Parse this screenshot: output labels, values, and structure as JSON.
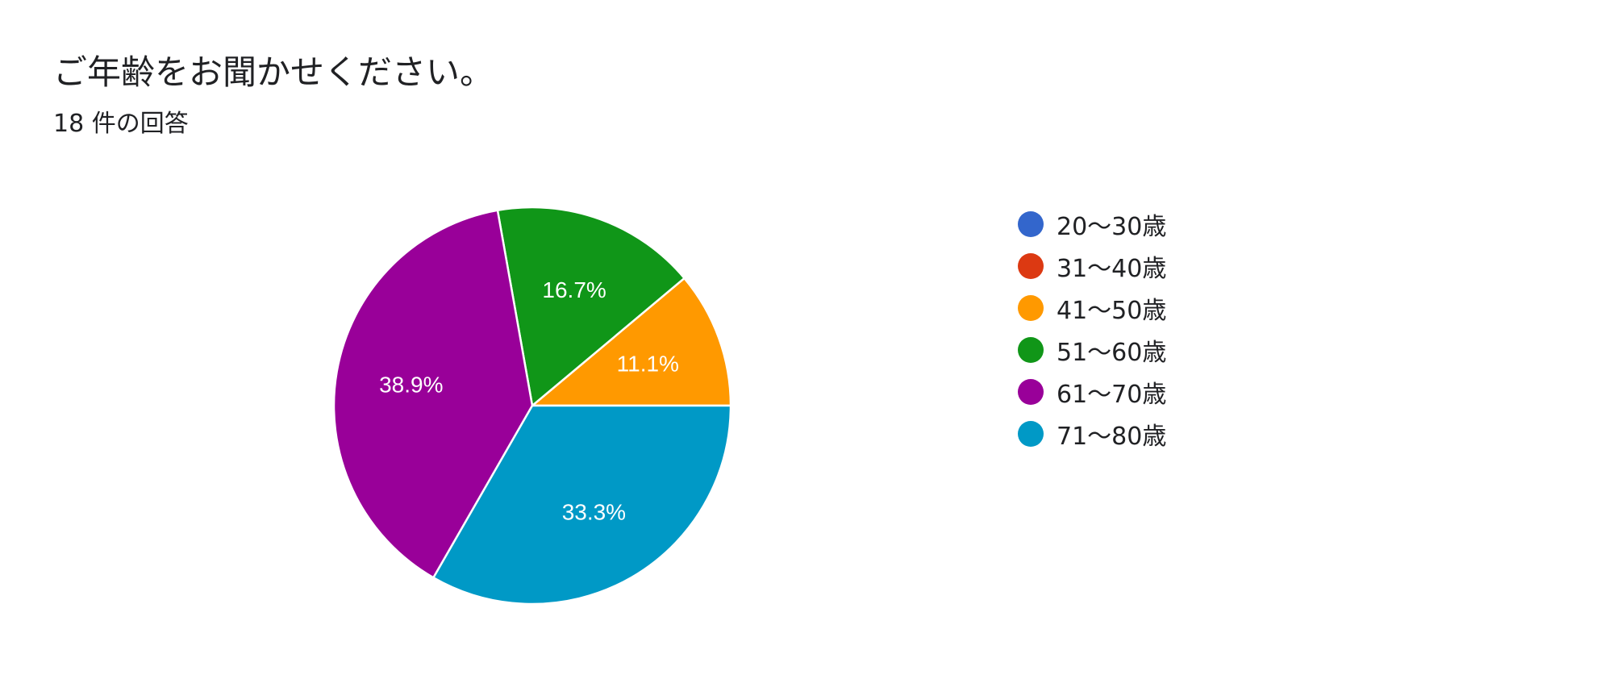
{
  "header": {
    "question": "ご年齢をお聞かせください。",
    "response_count": "18 件の回答"
  },
  "chart_data": {
    "type": "pie",
    "start": "3 o'clock, counter-clockwise",
    "categories": [
      "20〜30歳",
      "31〜40歳",
      "41〜50歳",
      "51〜60歳",
      "61〜70歳",
      "71〜80歳"
    ],
    "values": [
      0,
      0,
      11.1,
      16.7,
      38.9,
      33.3
    ],
    "value_labels": [
      "",
      "",
      "11.1%",
      "16.7%",
      "38.9%",
      "33.3%"
    ],
    "colors": [
      "#3366cc",
      "#dc3912",
      "#ff9900",
      "#109618",
      "#990099",
      "#0099c6"
    ],
    "legend_position": "right"
  }
}
